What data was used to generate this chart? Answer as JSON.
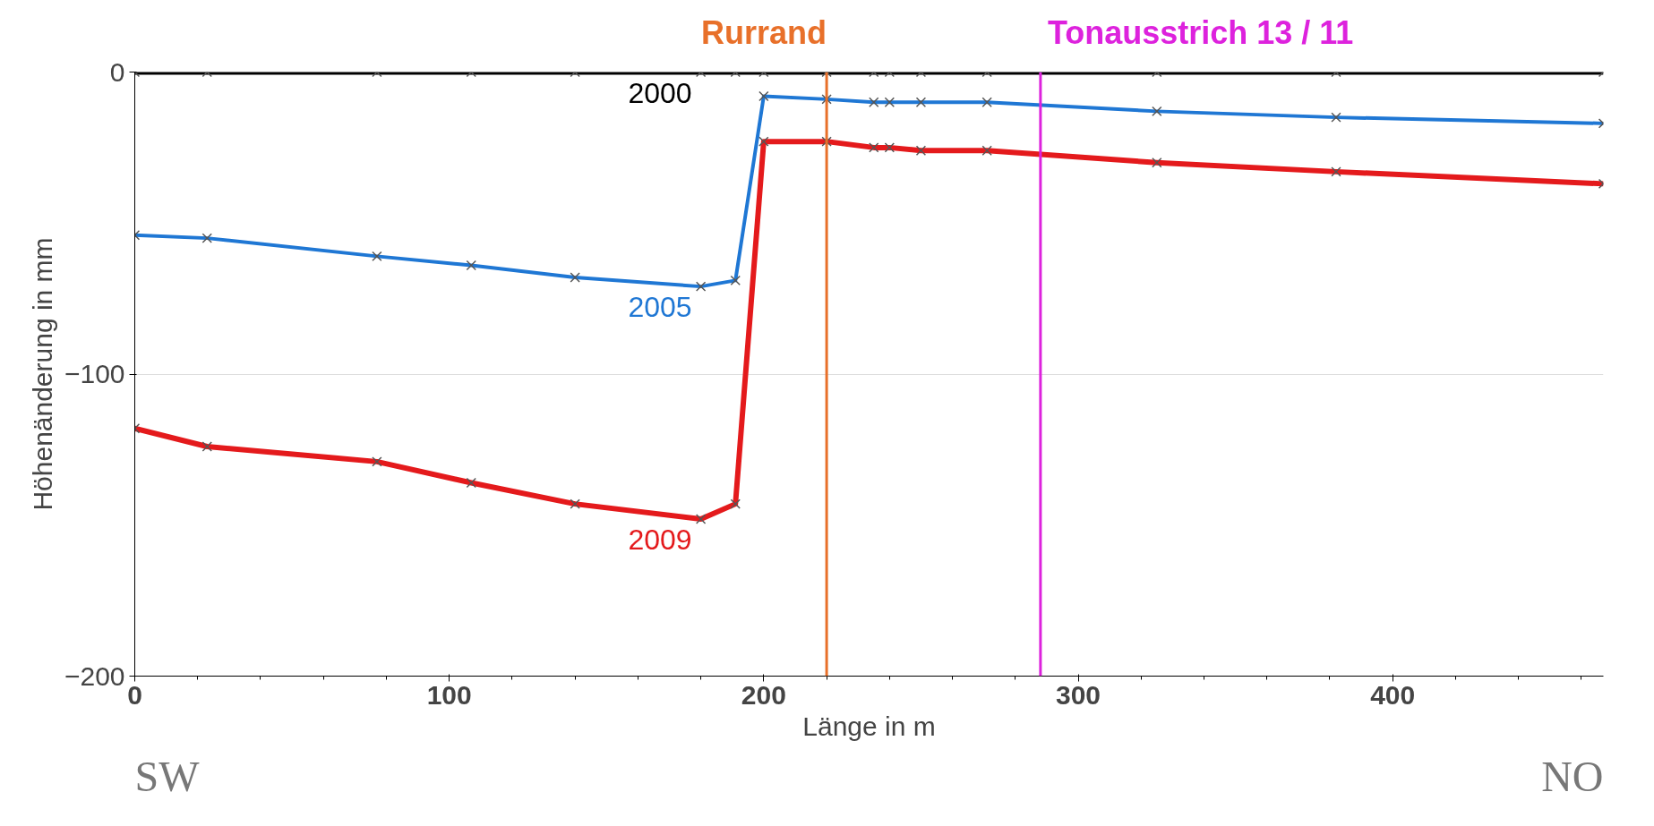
{
  "chart_data": {
    "type": "line",
    "xlabel": "Länge in m",
    "ylabel": "Höhenänderung in mm",
    "x": [
      0,
      23,
      77,
      107,
      140,
      180,
      191,
      200,
      220,
      235,
      240,
      250,
      271,
      325,
      382,
      467
    ],
    "series": [
      {
        "name": "2000",
        "color": "#000000",
        "values": [
          0,
          0,
          0,
          0,
          0,
          0,
          0,
          0,
          0,
          0,
          0,
          0,
          0,
          0,
          0,
          0
        ]
      },
      {
        "name": "2005",
        "color": "#1f77d4",
        "values": [
          -54,
          -55,
          -61,
          -64,
          -68,
          -71,
          -69,
          -8,
          -9,
          -10,
          -10,
          -10,
          -10,
          -13,
          -15,
          -17
        ]
      },
      {
        "name": "2009",
        "color": "#e41a1c",
        "values": [
          -118,
          -124,
          -129,
          -136,
          -143,
          -148,
          -143,
          -23,
          -23,
          -25,
          -25,
          -26,
          -26,
          -30,
          -33,
          -37
        ]
      }
    ],
    "xlim": [
      0,
      467
    ],
    "ylim": [
      -200,
      0
    ],
    "xticks": [
      0,
      100,
      200,
      300,
      400
    ],
    "yticks": [
      -200,
      -100,
      0
    ],
    "grid": "y",
    "marker": "cross",
    "line_style": "solid",
    "ref_lines": [
      {
        "axis": "x",
        "value": 220,
        "label": "Rurrand",
        "color": "#e8702a"
      },
      {
        "axis": "x",
        "value": 288,
        "label": "Tonausstrich 13 / 11",
        "color": "#dd22dd"
      }
    ],
    "annotations": [
      "SW",
      "NO"
    ]
  }
}
